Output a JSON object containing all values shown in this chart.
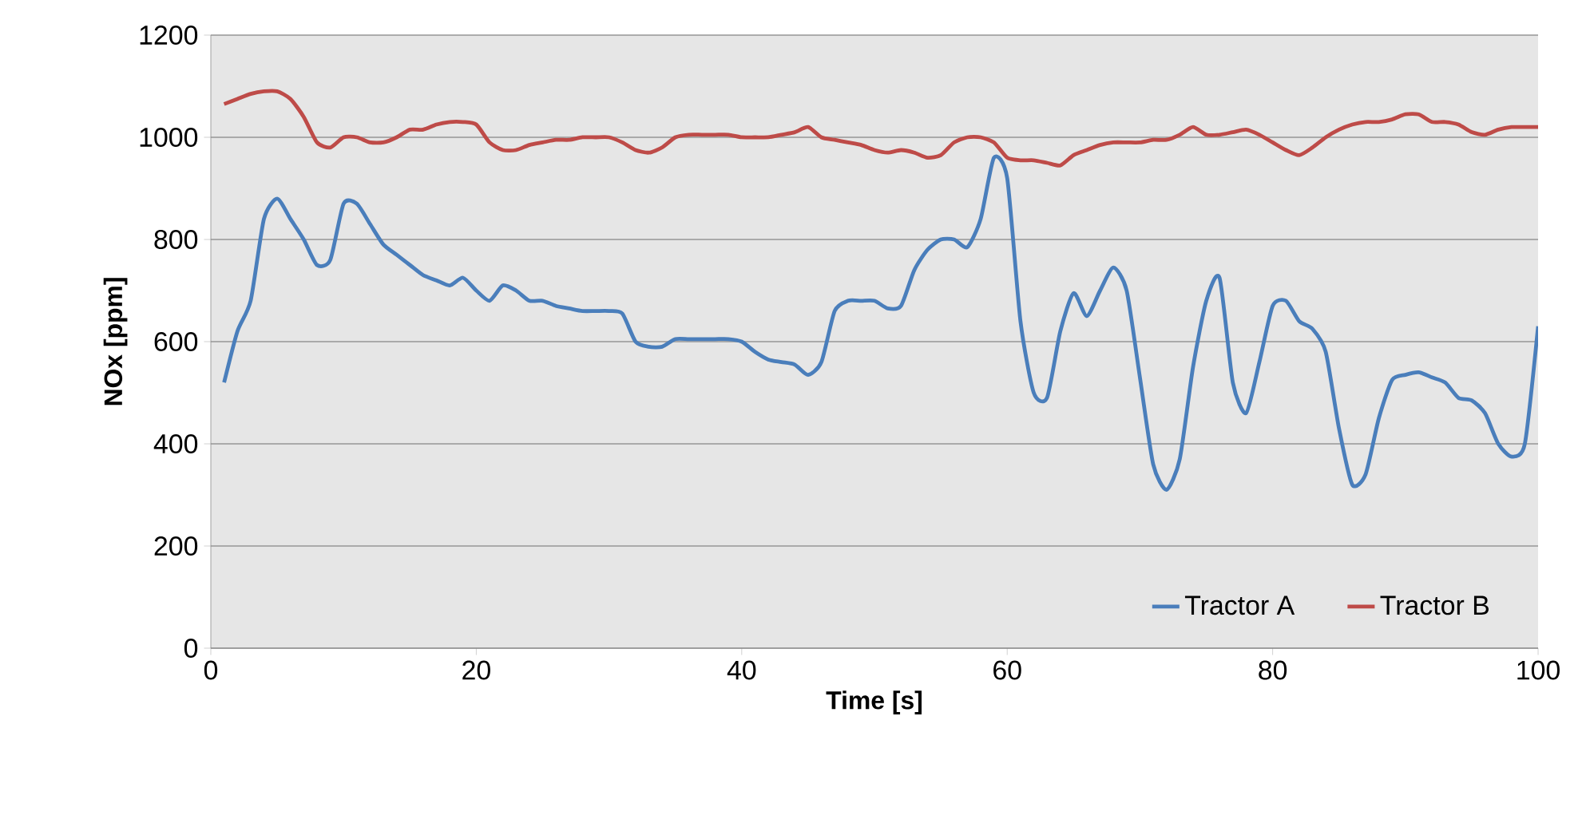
{
  "chart_data": {
    "type": "line",
    "xlabel": "Time [s]",
    "ylabel": "NOx [ppm]",
    "x": [
      1,
      2,
      3,
      4,
      5,
      6,
      7,
      8,
      9,
      10,
      11,
      12,
      13,
      14,
      15,
      16,
      17,
      18,
      19,
      20,
      21,
      22,
      23,
      24,
      25,
      26,
      27,
      28,
      29,
      30,
      31,
      32,
      33,
      34,
      35,
      36,
      37,
      38,
      39,
      40,
      41,
      42,
      43,
      44,
      45,
      46,
      47,
      48,
      49,
      50,
      51,
      52,
      53,
      54,
      55,
      56,
      57,
      58,
      59,
      60,
      61,
      62,
      63,
      64,
      65,
      66,
      67,
      68,
      69,
      70,
      71,
      72,
      73,
      74,
      75,
      76,
      77,
      78,
      79,
      80,
      81,
      82,
      83,
      84,
      85,
      86,
      87,
      88,
      89,
      90,
      91,
      92,
      93,
      94,
      95,
      96,
      97,
      98,
      99,
      100
    ],
    "series": [
      {
        "name": "Tractor A",
        "color": "#4a7ebb",
        "values": [
          520,
          620,
          680,
          840,
          880,
          840,
          800,
          750,
          760,
          870,
          870,
          830,
          790,
          770,
          750,
          730,
          720,
          710,
          725,
          700,
          680,
          710,
          700,
          680,
          680,
          670,
          665,
          660,
          660,
          660,
          655,
          600,
          590,
          590,
          605,
          605,
          605,
          605,
          605,
          600,
          580,
          565,
          560,
          555,
          535,
          560,
          660,
          680,
          680,
          680,
          665,
          670,
          740,
          780,
          800,
          800,
          785,
          840,
          960,
          920,
          640,
          500,
          490,
          620,
          695,
          650,
          700,
          745,
          700,
          530,
          360,
          310,
          370,
          550,
          680,
          725,
          520,
          460,
          560,
          670,
          680,
          640,
          625,
          580,
          430,
          320,
          340,
          450,
          525,
          535,
          540,
          530,
          520,
          490,
          485,
          460,
          400,
          375,
          400,
          630
        ]
      },
      {
        "name": "Tractor B",
        "color": "#be4b48",
        "values": [
          1065,
          1075,
          1085,
          1090,
          1090,
          1075,
          1040,
          990,
          980,
          1000,
          1000,
          990,
          990,
          1000,
          1015,
          1015,
          1025,
          1030,
          1030,
          1025,
          990,
          975,
          975,
          985,
          990,
          995,
          995,
          1000,
          1000,
          1000,
          990,
          975,
          970,
          980,
          1000,
          1005,
          1005,
          1005,
          1005,
          1000,
          1000,
          1000,
          1005,
          1010,
          1020,
          1000,
          995,
          990,
          985,
          975,
          970,
          975,
          970,
          960,
          965,
          990,
          1000,
          1000,
          990,
          960,
          955,
          955,
          950,
          945,
          965,
          975,
          985,
          990,
          990,
          990,
          995,
          995,
          1005,
          1020,
          1005,
          1005,
          1010,
          1015,
          1005,
          990,
          975,
          965,
          980,
          1000,
          1015,
          1025,
          1030,
          1030,
          1035,
          1045,
          1045,
          1030,
          1030,
          1025,
          1010,
          1005,
          1015,
          1020,
          1020,
          1020
        ]
      }
    ],
    "xlim": [
      0,
      100
    ],
    "xticks": [
      0,
      20,
      40,
      60,
      80,
      100
    ],
    "ylim": [
      0,
      1200
    ],
    "yticks": [
      0,
      200,
      400,
      600,
      800,
      1000,
      1200
    ],
    "grid": "y",
    "legend": "bottom right",
    "marker": "none",
    "line_style": "solid"
  }
}
